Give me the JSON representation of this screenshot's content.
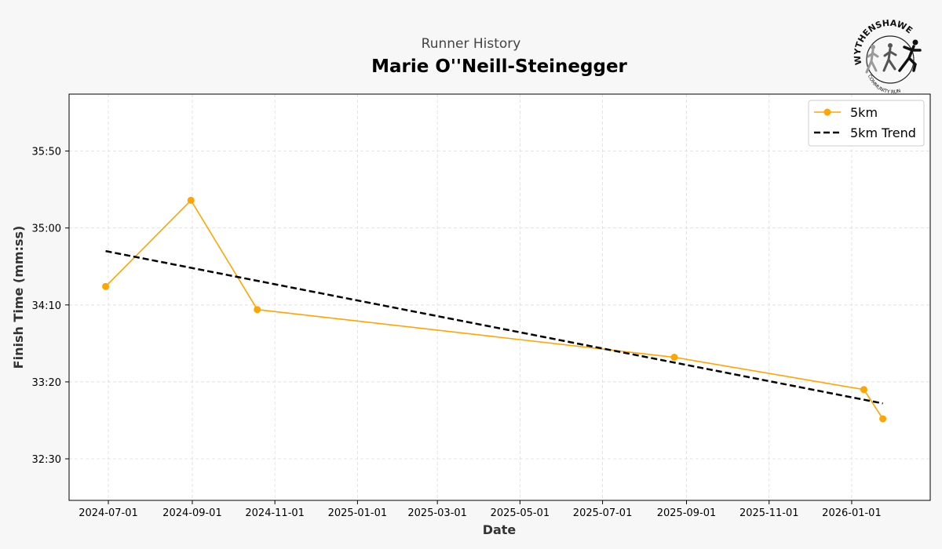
{
  "header": {
    "supertitle": "Runner History",
    "title": "Marie O''Neill-Steinegger"
  },
  "logo": {
    "top_text": "WYTHENSHAWE",
    "bottom_text": "COMMUNITY RUN",
    "icon": "running-figures-logo"
  },
  "chart_data": {
    "type": "line",
    "xlabel": "Date",
    "ylabel": "Finish Time (mm:ss)",
    "x_ticks": [
      "2024-07-01",
      "2024-09-01",
      "2024-11-01",
      "2025-01-01",
      "2025-03-01",
      "2025-05-01",
      "2025-07-01",
      "2025-09-01",
      "2025-11-01",
      "2026-01-01"
    ],
    "y_ticks": [
      "32:30",
      "33:20",
      "34:10",
      "35:00",
      "35:50"
    ],
    "xlim": [
      "2024-06-02",
      "2026-02-28"
    ],
    "ylim": [
      "32:03",
      "36:27"
    ],
    "grid": true,
    "legend_position": "top-right",
    "series": [
      {
        "name": "5km",
        "style": "solid-line-with-markers",
        "color": "#FFA500",
        "points": [
          {
            "x": "2024-06-29",
            "y": "34:22"
          },
          {
            "x": "2024-08-31",
            "y": "35:18"
          },
          {
            "x": "2024-10-19",
            "y": "34:07"
          },
          {
            "x": "2025-08-23",
            "y": "33:36"
          },
          {
            "x": "2026-01-10",
            "y": "33:15"
          },
          {
            "x": "2026-01-24",
            "y": "32:56"
          }
        ]
      },
      {
        "name": "5km Trend",
        "style": "dashed-line",
        "color": "#000000",
        "points": [
          {
            "x": "2024-06-29",
            "y": "34:45"
          },
          {
            "x": "2026-01-24",
            "y": "33:06"
          }
        ]
      }
    ]
  }
}
